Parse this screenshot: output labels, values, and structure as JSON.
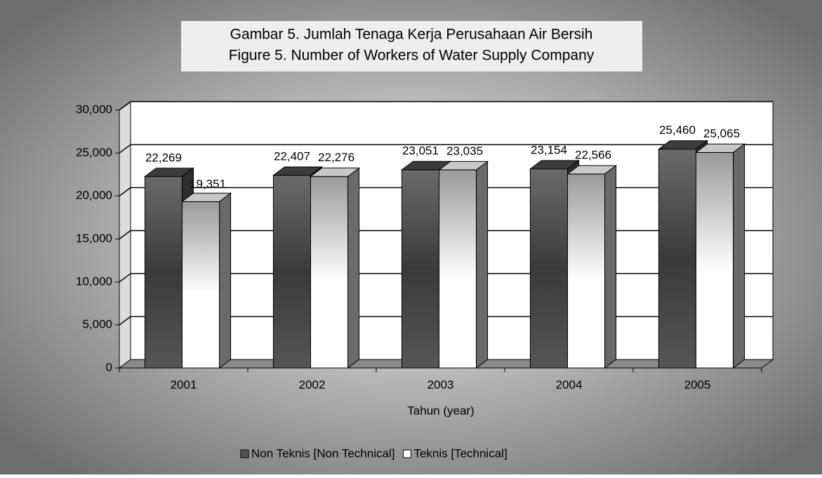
{
  "chart_data": {
    "type": "bar3d",
    "title": "Gambar 5. Jumlah Tenaga Kerja Perusahaan Air Bersih",
    "subtitle": "Figure 5. Number of Workers of Water Supply Company",
    "x_label": "Tahun (year)",
    "categories": [
      "2001",
      "2002",
      "2003",
      "2004",
      "2005"
    ],
    "series": [
      {
        "name": "Non Teknis [Non Technical]",
        "color": "#555555",
        "values": [
          22269,
          22407,
          23051,
          23154,
          25460
        ],
        "value_labels": [
          "22,269",
          "22,407",
          "23,051",
          "23,154",
          "25,460"
        ]
      },
      {
        "name": "Teknis [Technical]",
        "color": "#ffffff",
        "values": [
          19351,
          22276,
          23035,
          22566,
          25065
        ],
        "value_labels": [
          "19,351",
          "22,276",
          "23,035",
          "22,566",
          "25,065"
        ]
      }
    ],
    "ylim": [
      0,
      30000
    ],
    "yticks": [
      0,
      {
        "value": 5000,
        "label": "5,000"
      },
      {
        "value": 10000,
        "label": "10,000"
      },
      {
        "value": 15000,
        "label": "15,000"
      },
      {
        "value": 20000,
        "label": "20,000"
      },
      {
        "value": 25000,
        "label": "25,000"
      },
      {
        "value": 30000,
        "label": "30,000"
      }
    ],
    "grid": true,
    "legend": "bottom"
  }
}
